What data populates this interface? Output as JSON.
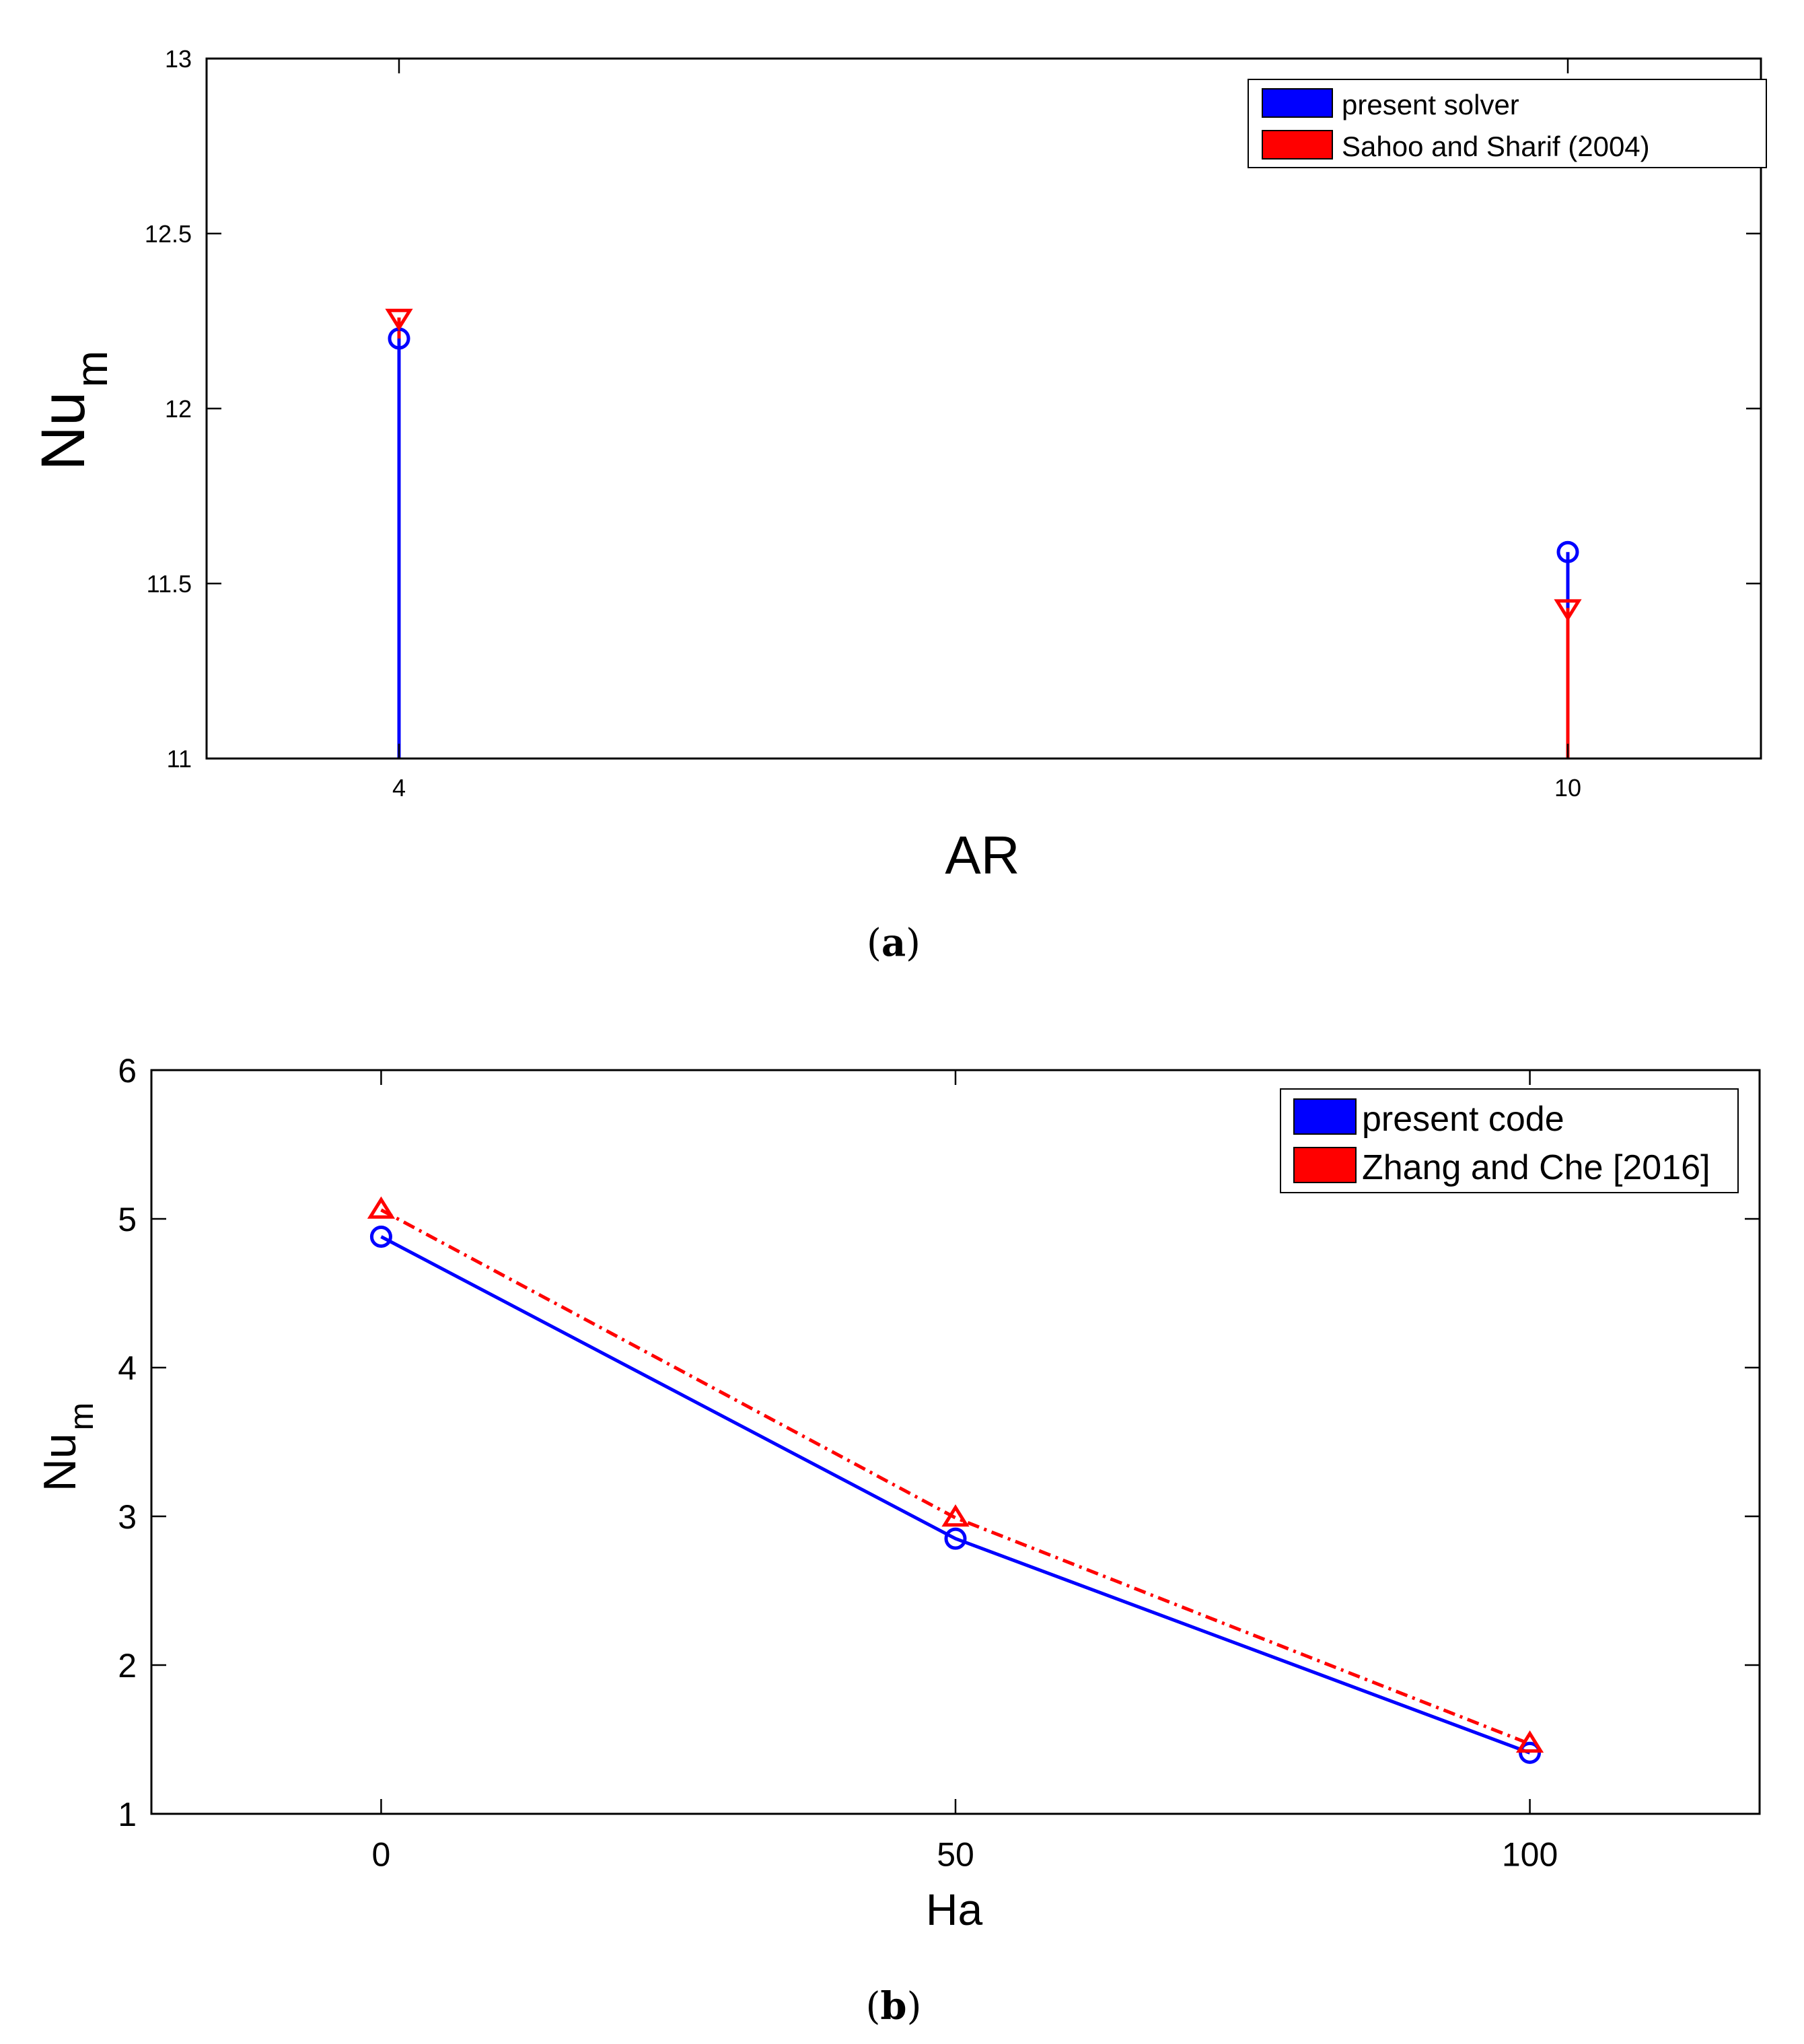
{
  "colors": {
    "blue": "#0000FF",
    "red": "#FF0000",
    "axis": "#000000"
  },
  "chart_data": [
    {
      "type": "stem",
      "caption_letter": "a",
      "xlabel": "AR",
      "ylabel_main": "Nu",
      "ylabel_sub": "m",
      "categories": [
        "4",
        "10"
      ],
      "ylim": [
        11,
        13
      ],
      "yticks": [
        11,
        11.5,
        12,
        12.5,
        13
      ],
      "ytick_labels": [
        "11",
        "11.5",
        "12",
        "12.5",
        "13"
      ],
      "legend": {
        "location": "top-right"
      },
      "series": [
        {
          "name": "present solver",
          "color": "blue",
          "marker": "circle",
          "values": [
            12.2,
            11.59
          ]
        },
        {
          "name": "Sahoo and Sharif (2004)",
          "color": "red",
          "marker": "triangle-down",
          "values": [
            12.26,
            11.43
          ]
        }
      ]
    },
    {
      "type": "line",
      "caption_letter": "b",
      "xlabel": "Ha",
      "ylabel_main": "Nu",
      "ylabel_sub": "m",
      "x": [
        0,
        50,
        100
      ],
      "xlim": [
        -20,
        120
      ],
      "xticks": [
        0,
        50,
        100
      ],
      "xtick_labels": [
        "0",
        "50",
        "100"
      ],
      "ylim": [
        1,
        6
      ],
      "yticks": [
        1,
        2,
        3,
        4,
        5,
        6
      ],
      "ytick_labels": [
        "1",
        "2",
        "3",
        "4",
        "5",
        "6"
      ],
      "legend": {
        "location": "top-right"
      },
      "series": [
        {
          "name": "present code",
          "color": "blue",
          "marker": "circle",
          "line": "solid",
          "values": [
            4.88,
            2.85,
            1.41
          ]
        },
        {
          "name": "Zhang and Che [2016]",
          "color": "red",
          "marker": "triangle-up",
          "line": "dashdot",
          "values": [
            5.06,
            2.99,
            1.47
          ]
        }
      ]
    }
  ]
}
